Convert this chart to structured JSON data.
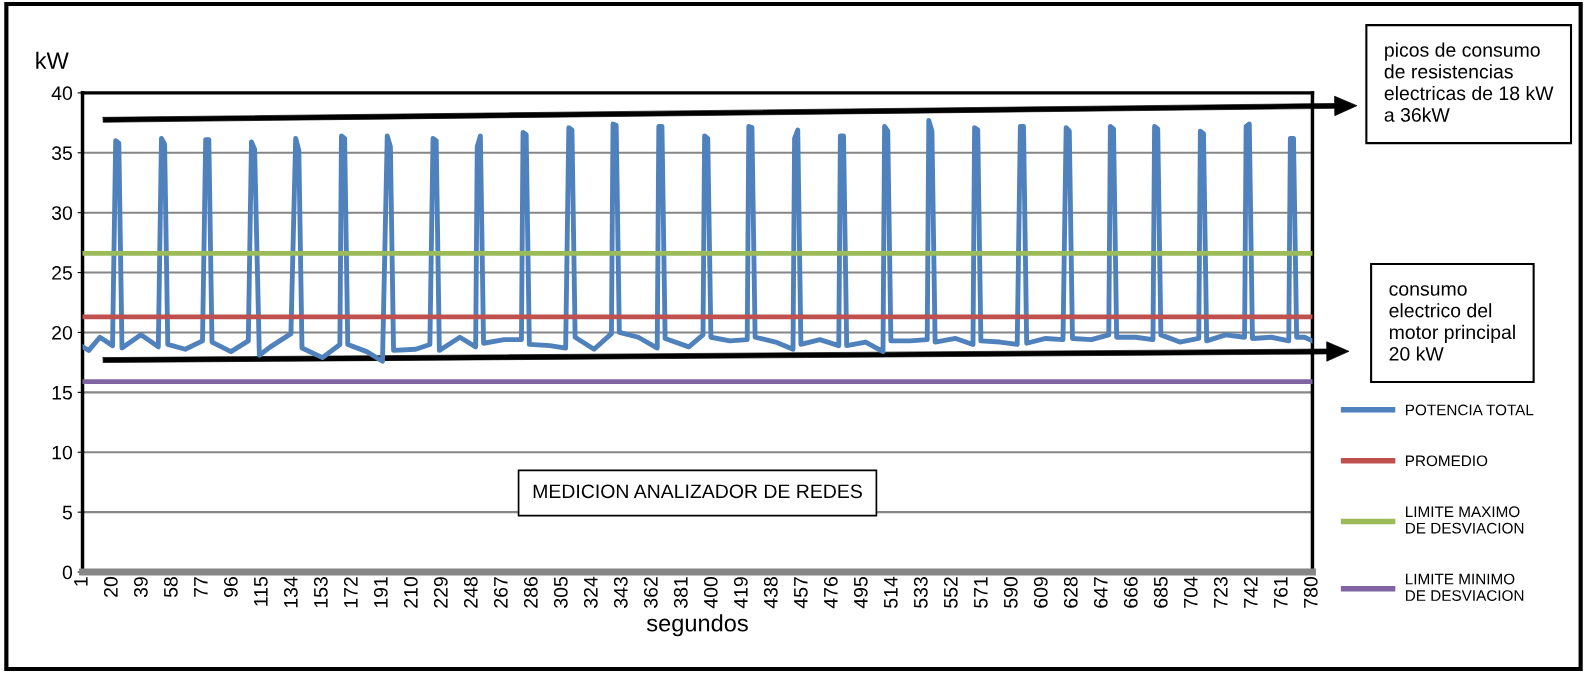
{
  "chart_data": {
    "type": "line",
    "xlabel": "segundos",
    "ylabel": "kW",
    "xlim": [
      1,
      780
    ],
    "xticks": [
      1,
      20,
      39,
      58,
      77,
      96,
      115,
      134,
      153,
      172,
      191,
      210,
      229,
      248,
      267,
      286,
      305,
      324,
      343,
      362,
      381,
      400,
      419,
      438,
      457,
      476,
      495,
      514,
      533,
      552,
      571,
      590,
      609,
      628,
      647,
      666,
      685,
      704,
      723,
      742,
      761,
      780
    ],
    "ylim": [
      0,
      40
    ],
    "yticks": [
      0,
      5,
      10,
      15,
      20,
      25,
      30,
      35,
      40
    ],
    "grid": "y",
    "legend": "right",
    "marker": "none",
    "line_style": "solid",
    "series": [
      {
        "name": "POTENCIA TOTAL",
        "color": "#4f81bd",
        "x": [
          1,
          5,
          12,
          20,
          22,
          24,
          26,
          38,
          49,
          51,
          53,
          55,
          66,
          77,
          79,
          81,
          83,
          95,
          106,
          108,
          110,
          113,
          120,
          133,
          136,
          138,
          140,
          153,
          164,
          165,
          167,
          169,
          181,
          191,
          194,
          196,
          198,
          212,
          221,
          223,
          225,
          227,
          240,
          250,
          251,
          253,
          255,
          268,
          279,
          280,
          282,
          284,
          297,
          307,
          309,
          311,
          313,
          325,
          336,
          337,
          339,
          341,
          353,
          365,
          366,
          368,
          370,
          385,
          394,
          395,
          397,
          399,
          411,
          422,
          423,
          425,
          427,
          440,
          451,
          452,
          454,
          456,
          468,
          480,
          481,
          483,
          485,
          497,
          508,
          509,
          511,
          513,
          525,
          536,
          537,
          539,
          541,
          554,
          565,
          566,
          568,
          570,
          582,
          593,
          595,
          597,
          599,
          611,
          622,
          624,
          626,
          628,
          640,
          651,
          652,
          654,
          656,
          668,
          679,
          680,
          682,
          684,
          696,
          708,
          709,
          711,
          713,
          725,
          737,
          738,
          740,
          742,
          754,
          765,
          766,
          768,
          770,
          775,
          780
        ],
        "values": [
          18.8,
          18.5,
          19.6,
          18.9,
          36.0,
          35.8,
          18.7,
          19.8,
          18.8,
          36.2,
          35.7,
          19.0,
          18.6,
          19.3,
          36.1,
          36.1,
          19.2,
          18.4,
          19.3,
          35.9,
          35.3,
          18.1,
          18.8,
          19.9,
          36.2,
          35.2,
          18.7,
          17.9,
          19.0,
          36.4,
          36.2,
          19.0,
          18.4,
          17.6,
          36.4,
          35.5,
          18.5,
          18.6,
          19.0,
          36.2,
          36.0,
          18.5,
          19.6,
          18.8,
          35.5,
          36.4,
          19.1,
          19.4,
          19.4,
          36.7,
          36.5,
          19.0,
          18.9,
          18.7,
          37.1,
          36.9,
          19.6,
          18.6,
          19.9,
          37.4,
          37.3,
          20.0,
          19.6,
          18.7,
          37.2,
          37.2,
          19.5,
          18.8,
          19.8,
          36.4,
          36.2,
          19.6,
          19.3,
          19.4,
          37.2,
          37.1,
          19.6,
          19.2,
          18.6,
          36.2,
          36.9,
          19.0,
          19.4,
          18.9,
          36.4,
          36.4,
          18.9,
          19.2,
          18.4,
          37.2,
          36.8,
          19.3,
          19.3,
          19.4,
          37.7,
          36.8,
          19.2,
          19.5,
          19.0,
          37.1,
          36.9,
          19.3,
          19.2,
          19.0,
          37.2,
          37.2,
          19.1,
          19.5,
          19.4,
          37.1,
          36.8,
          19.5,
          19.4,
          19.8,
          37.2,
          37.0,
          19.6,
          19.6,
          19.4,
          37.2,
          37.0,
          19.8,
          19.2,
          19.5,
          36.8,
          36.6,
          19.3,
          19.8,
          19.6,
          37.2,
          37.4,
          19.5,
          19.6,
          19.3,
          36.2,
          36.2,
          19.6,
          19.6,
          19.3
        ]
      },
      {
        "name": "PROMEDIO",
        "color": "#c0504d",
        "x": [
          1,
          780
        ],
        "values": [
          21.3,
          21.3
        ]
      },
      {
        "name": "LIMITE MAXIMO\nDE DESVIACION",
        "color": "#9bbb59",
        "x": [
          1,
          780
        ],
        "values": [
          26.6,
          26.6
        ]
      },
      {
        "name": "LIMITE MINIMO\nDE DESVIACION",
        "color": "#8064a2",
        "x": [
          1,
          780
        ],
        "values": [
          15.9,
          15.9
        ]
      }
    ],
    "annotations": [
      "picos de consumo\nde resistencias\nelectricas de 18 kW\na 36kW",
      "consumo\nelectrico del\nmotor principal\n20 kW",
      "MEDICION ANALIZADOR DE REDES"
    ]
  }
}
